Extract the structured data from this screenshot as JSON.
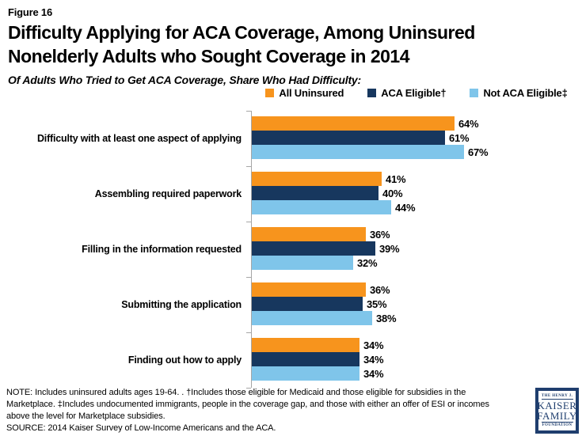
{
  "header": {
    "figure_label": "Figure 16",
    "title": "Difficulty Applying for ACA Coverage, Among Uninsured Nonelderly Adults who Sought Coverage in 2014",
    "subtitle": "Of Adults Who Tried to Get ACA Coverage, Share Who Had Difficulty:"
  },
  "chart_data": {
    "type": "bar",
    "orientation": "horizontal",
    "title": "Of Adults Who Tried to Get ACA Coverage, Share Who Had Difficulty:",
    "xlabel": "",
    "ylabel": "",
    "xlim": [
      0,
      100
    ],
    "value_suffix": "%",
    "grid": false,
    "legend_position": "top",
    "categories": [
      "Difficulty with at least one aspect of applying",
      "Assembling required paperwork",
      "Filling in the information requested",
      "Submitting the application",
      "Finding out how to apply"
    ],
    "series": [
      {
        "name": "All Uninsured",
        "color": "#f7941d",
        "values": [
          64,
          41,
          36,
          36,
          34
        ]
      },
      {
        "name": "ACA Eligible†",
        "color": "#17375e",
        "values": [
          61,
          40,
          39,
          35,
          34
        ]
      },
      {
        "name": "Not ACA Eligible‡",
        "color": "#7fc5ea",
        "values": [
          67,
          44,
          32,
          38,
          34
        ]
      }
    ],
    "axis_color": "#a6a6a6"
  },
  "notes": {
    "lines": [
      "NOTE: Includes uninsured adults ages 19-64. .  †Includes those eligible for Medicaid and those eligible for subsidies in the",
      "Marketplace. ‡Includes undocumented immigrants, people in the coverage gap, and those with either an offer of ESI or incomes",
      "above the level for Marketplace subsidies.",
      "SOURCE: 2014 Kaiser Survey of Low-Income Americans and the ACA."
    ]
  },
  "logo": {
    "line1": "THE HENRY J.",
    "line2": "KAISER",
    "line3": "FAMILY",
    "line4": "FOUNDATION"
  }
}
